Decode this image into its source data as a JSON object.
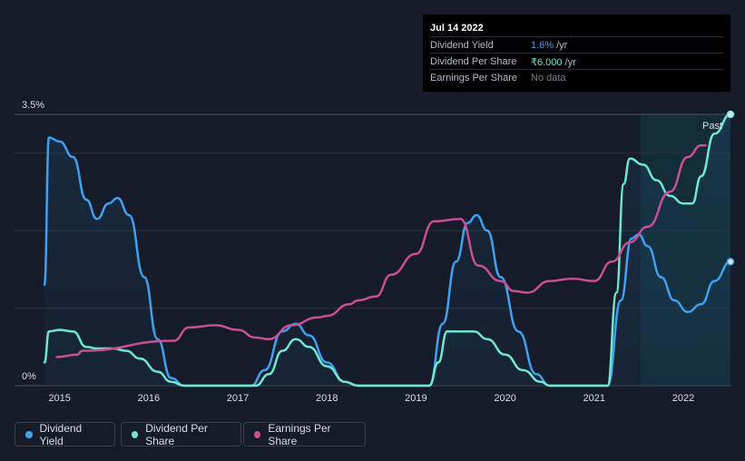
{
  "tooltip": {
    "date": "Jul 14 2022",
    "rows": [
      {
        "label": "Dividend Yield",
        "value": "1.6%",
        "unit": "/yr",
        "color": "#3fa0f0"
      },
      {
        "label": "Dividend Per Share",
        "value": "₹6.000",
        "unit": "/yr",
        "color": "#6ee6d0"
      },
      {
        "label": "Earnings Per Share",
        "value": "No data",
        "unit": "",
        "color": "#7a808a"
      }
    ]
  },
  "past_label": "Past",
  "legend": [
    {
      "label": "Dividend Yield",
      "color": "#3fa0f0"
    },
    {
      "label": "Dividend Per Share",
      "color": "#6ee6d0"
    },
    {
      "label": "Earnings Per Share",
      "color": "#c94f94"
    }
  ],
  "chart_data": {
    "type": "line",
    "y_tick_labels": [
      "3.5%",
      "0%"
    ],
    "ylim": [
      0,
      3.5
    ],
    "x_tick_labels": [
      "2015",
      "2016",
      "2017",
      "2018",
      "2019",
      "2020",
      "2021",
      "2022"
    ],
    "xlim": [
      2014.83,
      2022.53
    ],
    "past_start": 2021.52,
    "series": [
      {
        "name": "Dividend Yield",
        "color": "#3fa0f0",
        "filled": true,
        "end_marker": true,
        "points": [
          [
            2014.83,
            1.3
          ],
          [
            2014.88,
            3.2
          ],
          [
            2015.0,
            3.15
          ],
          [
            2015.15,
            2.95
          ],
          [
            2015.3,
            2.4
          ],
          [
            2015.42,
            2.15
          ],
          [
            2015.55,
            2.35
          ],
          [
            2015.65,
            2.42
          ],
          [
            2015.78,
            2.2
          ],
          [
            2015.95,
            1.4
          ],
          [
            2016.1,
            0.6
          ],
          [
            2016.25,
            0.1
          ],
          [
            2016.4,
            0.0
          ],
          [
            2017.15,
            0.0
          ],
          [
            2017.3,
            0.2
          ],
          [
            2017.5,
            0.7
          ],
          [
            2017.65,
            0.8
          ],
          [
            2017.8,
            0.65
          ],
          [
            2018.0,
            0.3
          ],
          [
            2018.2,
            0.05
          ],
          [
            2018.35,
            0.0
          ],
          [
            2019.15,
            0.0
          ],
          [
            2019.3,
            0.8
          ],
          [
            2019.45,
            1.6
          ],
          [
            2019.58,
            2.1
          ],
          [
            2019.68,
            2.2
          ],
          [
            2019.8,
            2.0
          ],
          [
            2019.95,
            1.4
          ],
          [
            2020.15,
            0.7
          ],
          [
            2020.35,
            0.15
          ],
          [
            2020.5,
            0.0
          ],
          [
            2021.15,
            0.0
          ],
          [
            2021.3,
            1.1
          ],
          [
            2021.42,
            1.9
          ],
          [
            2021.5,
            1.95
          ],
          [
            2021.6,
            1.8
          ],
          [
            2021.75,
            1.4
          ],
          [
            2021.9,
            1.1
          ],
          [
            2022.05,
            0.95
          ],
          [
            2022.2,
            1.05
          ],
          [
            2022.35,
            1.35
          ],
          [
            2022.53,
            1.6
          ]
        ]
      },
      {
        "name": "Dividend Per Share",
        "color": "#6ee6d0",
        "filled": true,
        "end_marker": true,
        "points": [
          [
            2014.83,
            0.3
          ],
          [
            2014.88,
            0.7
          ],
          [
            2015.0,
            0.72
          ],
          [
            2015.15,
            0.7
          ],
          [
            2015.3,
            0.5
          ],
          [
            2015.42,
            0.48
          ],
          [
            2015.6,
            0.48
          ],
          [
            2015.75,
            0.45
          ],
          [
            2015.9,
            0.35
          ],
          [
            2016.1,
            0.18
          ],
          [
            2016.25,
            0.05
          ],
          [
            2016.4,
            0.0
          ],
          [
            2017.2,
            0.0
          ],
          [
            2017.35,
            0.15
          ],
          [
            2017.5,
            0.45
          ],
          [
            2017.65,
            0.6
          ],
          [
            2017.8,
            0.5
          ],
          [
            2018.0,
            0.25
          ],
          [
            2018.2,
            0.05
          ],
          [
            2018.35,
            0.0
          ],
          [
            2019.15,
            0.0
          ],
          [
            2019.25,
            0.3
          ],
          [
            2019.35,
            0.7
          ],
          [
            2019.65,
            0.7
          ],
          [
            2019.8,
            0.6
          ],
          [
            2020.0,
            0.4
          ],
          [
            2020.2,
            0.2
          ],
          [
            2020.4,
            0.05
          ],
          [
            2020.5,
            0.0
          ],
          [
            2021.15,
            0.0
          ],
          [
            2021.25,
            1.2
          ],
          [
            2021.33,
            2.6
          ],
          [
            2021.4,
            2.93
          ],
          [
            2021.55,
            2.85
          ],
          [
            2021.7,
            2.65
          ],
          [
            2021.85,
            2.45
          ],
          [
            2022.0,
            2.35
          ],
          [
            2022.1,
            2.35
          ],
          [
            2022.2,
            2.7
          ],
          [
            2022.35,
            3.25
          ],
          [
            2022.53,
            3.5
          ]
        ]
      },
      {
        "name": "Earnings Per Share",
        "color": "#c94f94",
        "filled": false,
        "end_marker": false,
        "points": [
          [
            2014.97,
            0.37
          ],
          [
            2015.2,
            0.4
          ],
          [
            2015.25,
            0.45
          ],
          [
            2016.28,
            0.58
          ],
          [
            2016.45,
            0.75
          ],
          [
            2016.75,
            0.78
          ],
          [
            2017.0,
            0.72
          ],
          [
            2017.2,
            0.62
          ],
          [
            2017.35,
            0.6
          ],
          [
            2017.6,
            0.78
          ],
          [
            2017.9,
            0.88
          ],
          [
            2018.0,
            0.9
          ],
          [
            2018.25,
            1.05
          ],
          [
            2018.35,
            1.1
          ],
          [
            2018.55,
            1.15
          ],
          [
            2018.72,
            1.43
          ],
          [
            2019.0,
            1.7
          ],
          [
            2019.2,
            2.12
          ],
          [
            2019.5,
            2.15
          ],
          [
            2019.7,
            1.55
          ],
          [
            2019.95,
            1.35
          ],
          [
            2020.1,
            1.22
          ],
          [
            2020.25,
            1.2
          ],
          [
            2020.5,
            1.35
          ],
          [
            2020.75,
            1.38
          ],
          [
            2021.0,
            1.35
          ],
          [
            2021.2,
            1.6
          ],
          [
            2021.4,
            1.85
          ],
          [
            2021.6,
            2.05
          ],
          [
            2021.85,
            2.5
          ],
          [
            2022.05,
            2.95
          ],
          [
            2022.2,
            3.1
          ],
          [
            2022.25,
            3.1
          ]
        ]
      }
    ]
  }
}
